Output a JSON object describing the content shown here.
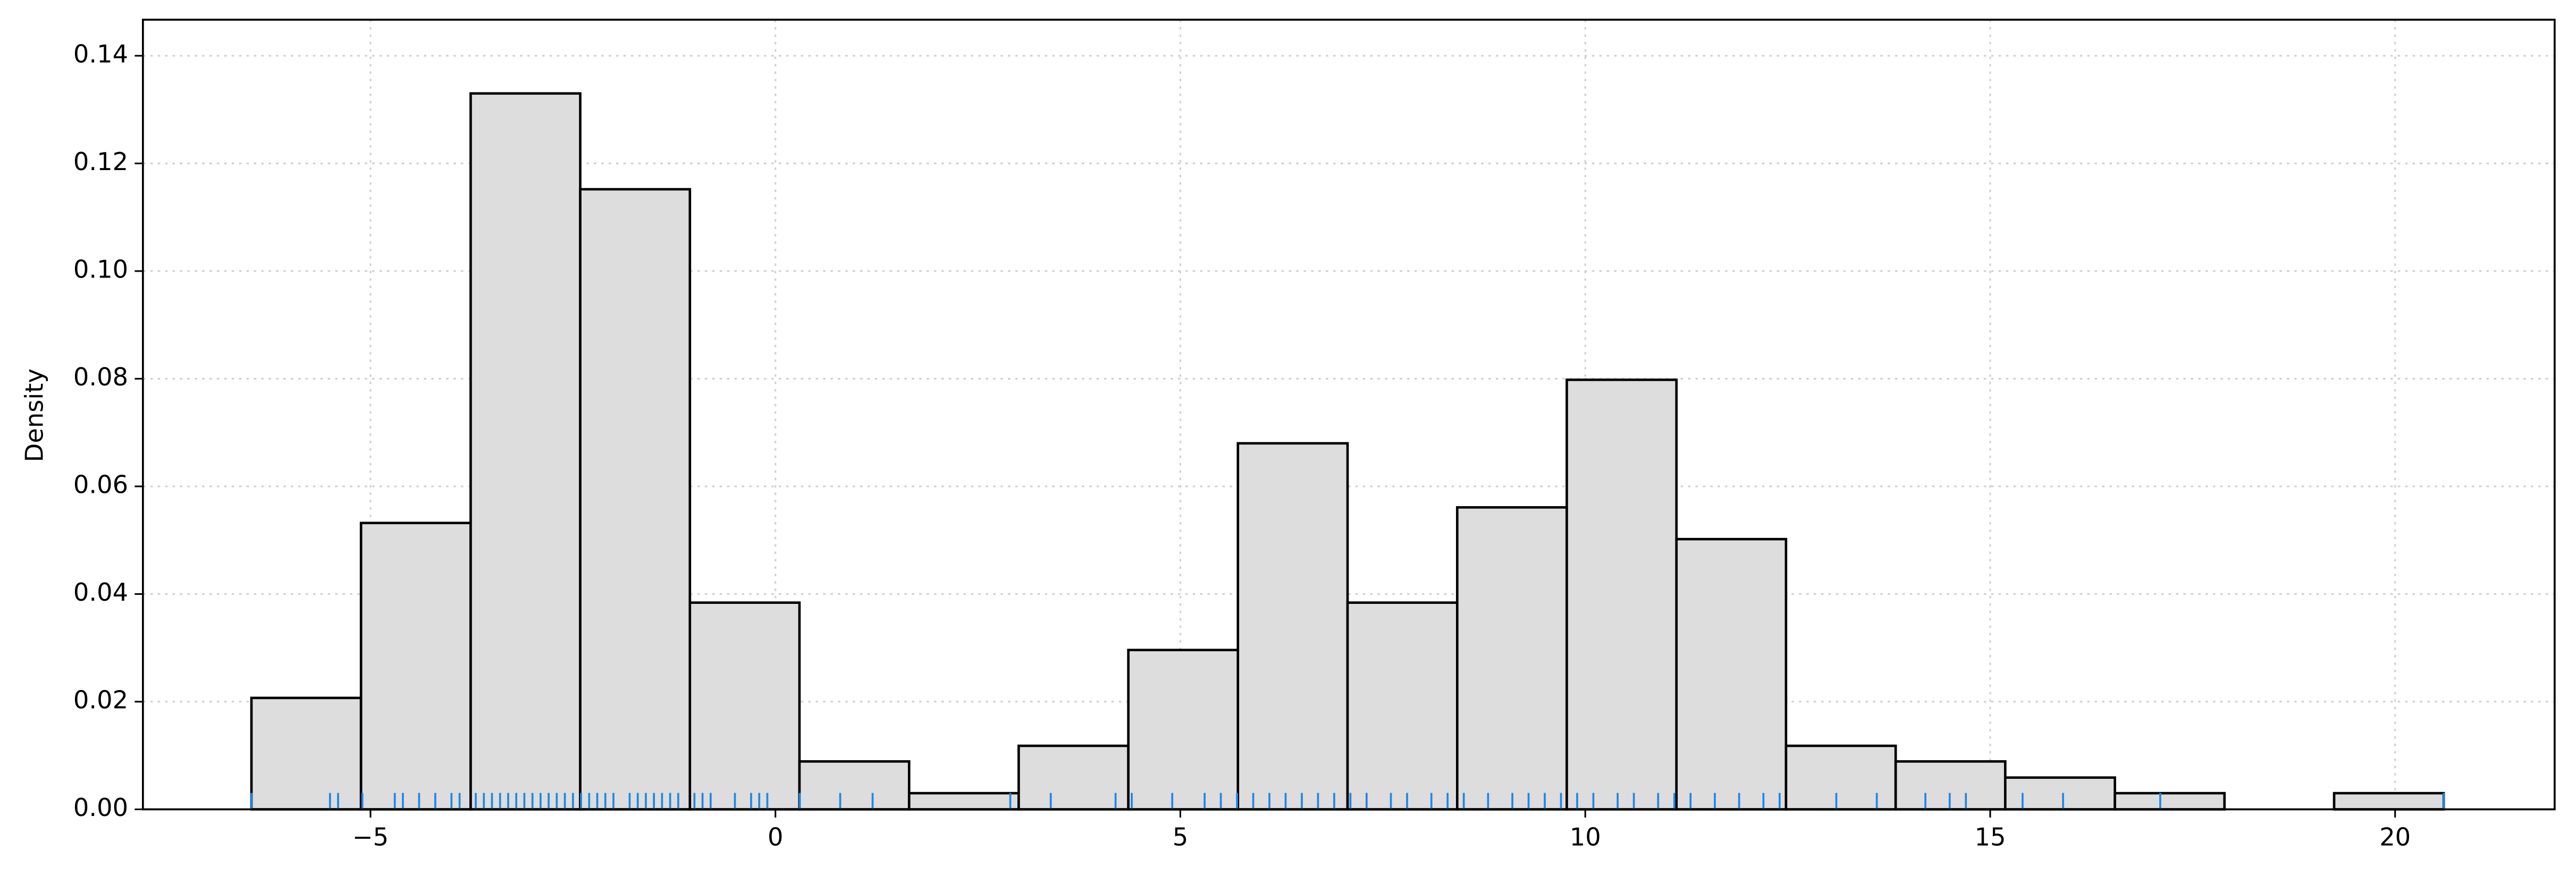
{
  "chart_data": {
    "type": "histogram",
    "ylabel": "Density",
    "bins": [
      -6.47,
      -5.117,
      -3.763,
      -2.41,
      -1.056,
      0.297,
      1.651,
      3.004,
      4.358,
      5.711,
      7.065,
      8.419,
      9.772,
      11.126,
      12.479,
      13.833,
      15.186,
      16.54,
      17.893,
      19.247,
      20.6
    ],
    "values": [
      0.0207,
      0.0532,
      0.133,
      0.1152,
      0.0384,
      0.0089,
      0.003,
      0.0118,
      0.0296,
      0.068,
      0.0384,
      0.0561,
      0.0798,
      0.0502,
      0.0118,
      0.0089,
      0.0059,
      0.003,
      0,
      0.003
    ],
    "color": "#dddddd",
    "edgecolor": "#000000",
    "rug": [
      -6.47,
      -5.5,
      -5.4,
      -5.1,
      -4.7,
      -4.6,
      -4.4,
      -4.2,
      -4.0,
      -3.9,
      -3.7,
      -3.6,
      -3.5,
      -3.4,
      -3.3,
      -3.2,
      -3.1,
      -3.0,
      -2.9,
      -2.8,
      -2.7,
      -2.6,
      -2.5,
      -2.4,
      -2.3,
      -2.2,
      -2.1,
      -2.0,
      -1.8,
      -1.7,
      -1.6,
      -1.5,
      -1.4,
      -1.3,
      -1.2,
      -1.0,
      -0.9,
      -0.8,
      -0.5,
      -0.3,
      -0.2,
      -0.1,
      0.3,
      0.8,
      1.2,
      2.9,
      3.4,
      4.2,
      4.4,
      4.9,
      5.3,
      5.5,
      5.7,
      5.9,
      6.1,
      6.3,
      6.5,
      6.7,
      6.9,
      7.1,
      7.3,
      7.6,
      7.8,
      8.1,
      8.3,
      8.5,
      8.8,
      9.1,
      9.3,
      9.5,
      9.7,
      9.9,
      10.1,
      10.4,
      10.6,
      10.9,
      11.1,
      11.3,
      11.6,
      11.9,
      12.2,
      12.4,
      13.1,
      13.6,
      14.2,
      14.5,
      14.7,
      15.4,
      15.9,
      17.1,
      20.6
    ],
    "rug_color": "#1e88e5",
    "xlim": [
      -7.81,
      21.97
    ],
    "xticks": [
      {
        "value": -5,
        "label": "−5"
      },
      0,
      5,
      10,
      15,
      20
    ],
    "ylim": [
      0,
      0.1467
    ],
    "yticks": [
      {
        "value": 0,
        "label": "0.00"
      },
      {
        "value": 0.02,
        "label": "0.02"
      },
      {
        "value": 0.04,
        "label": "0.04"
      },
      {
        "value": 0.06,
        "label": "0.06"
      },
      {
        "value": 0.08,
        "label": "0.08"
      },
      {
        "value": 0.1,
        "label": "0.10"
      },
      {
        "value": 0.12,
        "label": "0.12"
      },
      {
        "value": 0.14,
        "label": "0.14"
      }
    ],
    "grid": true
  }
}
